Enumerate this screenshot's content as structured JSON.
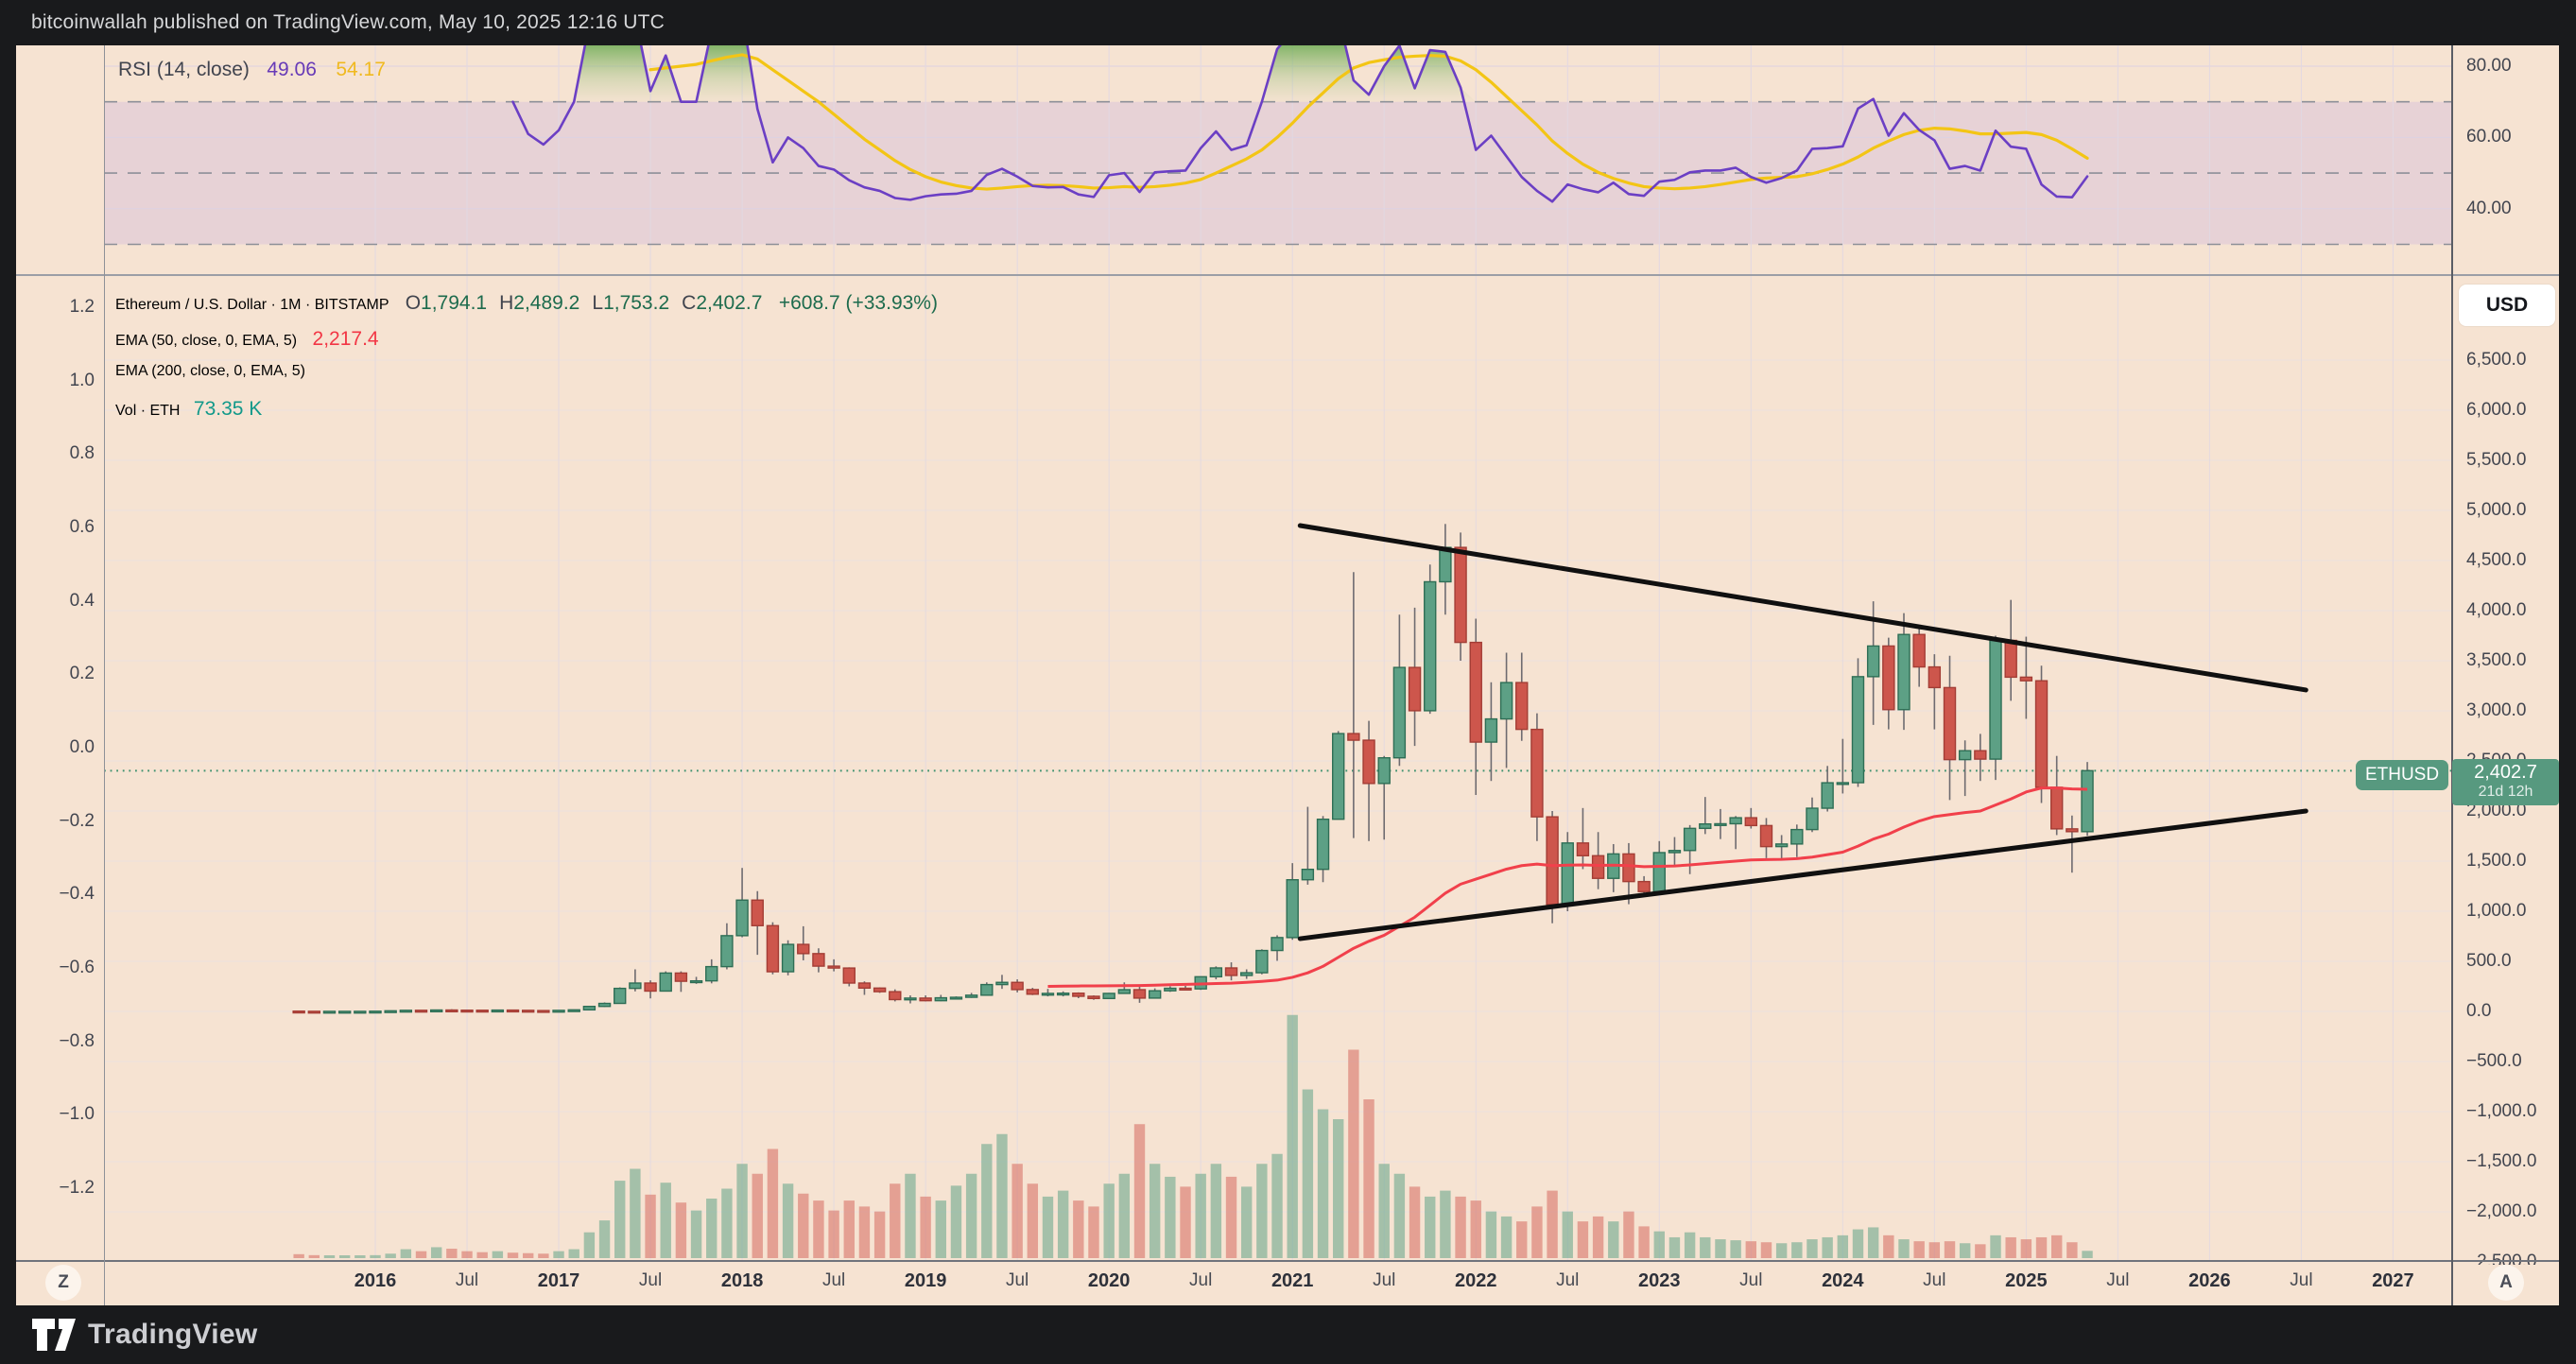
{
  "page": {
    "topbar_text": "bitcoinwallah published on TradingView.com, May 10, 2025 12:16 UTC",
    "brand": "TradingView"
  },
  "rsi_pane": {
    "legend": {
      "title": "RSI (14, close)",
      "value": "49.06",
      "ma_value": "54.17"
    }
  },
  "main_pane": {
    "legend": {
      "title": "Ethereum / U.S. Dollar · 1M · BITSTAMP",
      "ohlc": [
        [
          "O",
          "1,794.1"
        ],
        [
          "H",
          "2,489.2"
        ],
        [
          "L",
          "1,753.2"
        ],
        [
          "C",
          "2,402.7"
        ]
      ],
      "change": "+608.7 (+33.93%)",
      "ema50_title": "EMA (50, close, 0, EMA, 5)",
      "ema50_value": "2,217.4",
      "ema200_title": "EMA (200, close, 0, EMA, 5)",
      "vol_title": "Vol · ETH",
      "vol_value": "73.35 K"
    },
    "badges": {
      "symbol": "ETHUSD",
      "price": "2,402.7",
      "countdown": "21d 12h"
    },
    "currency_button": "USD"
  },
  "time_axis": {
    "zoom_button": "Z",
    "auto_button": "A",
    "ticks": [
      {
        "label": "2016",
        "month": 5
      },
      {
        "label": "Jul",
        "month": 11
      },
      {
        "label": "2017",
        "month": 17
      },
      {
        "label": "Jul",
        "month": 23
      },
      {
        "label": "2018",
        "month": 29
      },
      {
        "label": "Jul",
        "month": 35
      },
      {
        "label": "2019",
        "month": 41
      },
      {
        "label": "Jul",
        "month": 47
      },
      {
        "label": "2020",
        "month": 53
      },
      {
        "label": "Jul",
        "month": 59
      },
      {
        "label": "2021",
        "month": 65
      },
      {
        "label": "Jul",
        "month": 71
      },
      {
        "label": "2022",
        "month": 77
      },
      {
        "label": "Jul",
        "month": 83
      },
      {
        "label": "2023",
        "month": 89
      },
      {
        "label": "Jul",
        "month": 95
      },
      {
        "label": "2024",
        "month": 101
      },
      {
        "label": "Jul",
        "month": 107
      },
      {
        "label": "2025",
        "month": 113
      },
      {
        "label": "Jul",
        "month": 119
      },
      {
        "label": "2026",
        "month": 125
      },
      {
        "label": "Jul",
        "month": 131
      },
      {
        "label": "2027",
        "month": 137
      }
    ]
  },
  "chart_data": {
    "type": "candlestick",
    "symbol": "ETHUSD",
    "exchange": "BITSTAMP",
    "timeframe": "1M",
    "start_month": "2015-08",
    "price_axis": {
      "min": -2500,
      "max": 6500,
      "step": 500
    },
    "alt_axis": {
      "min": -1.2,
      "max": 1.2,
      "step": 0.2
    },
    "rsi_axis": {
      "labels": [
        80,
        60,
        40
      ],
      "dashed_levels": [
        70,
        50,
        30
      ],
      "band": [
        30,
        70
      ]
    },
    "price_line": 2402.7,
    "candles": [
      [
        2.8,
        2.9,
        0.6,
        1.2
      ],
      [
        1.2,
        1.4,
        0.6,
        0.7
      ],
      [
        0.7,
        1.2,
        0.4,
        0.9
      ],
      [
        0.9,
        1.2,
        0.8,
        0.9
      ],
      [
        0.9,
        1.0,
        0.8,
        0.95
      ],
      [
        0.95,
        2.5,
        0.9,
        2.3
      ],
      [
        2.3,
        6.5,
        2.2,
        6.2
      ],
      [
        6.2,
        15,
        5.9,
        11.2
      ],
      [
        11.2,
        12,
        7,
        8.8
      ],
      [
        8.8,
        15,
        8.7,
        14
      ],
      [
        14,
        21.5,
        10.5,
        12.2
      ],
      [
        12.2,
        13,
        9.7,
        11.8
      ],
      [
        11.8,
        12.5,
        9.8,
        11.2
      ],
      [
        11.2,
        13.5,
        11,
        13.2
      ],
      [
        13.2,
        13.5,
        10.2,
        10.9
      ],
      [
        10.9,
        11.5,
        8.5,
        8.6
      ],
      [
        8.6,
        9,
        6.9,
        8.2
      ],
      [
        8.2,
        11.5,
        8,
        10.7
      ],
      [
        10.7,
        16,
        10.5,
        15.8
      ],
      [
        15.8,
        55,
        15.5,
        50
      ],
      [
        50,
        90,
        44,
        80
      ],
      [
        80,
        240,
        76,
        230
      ],
      [
        230,
        420,
        200,
        283
      ],
      [
        283,
        310,
        130,
        203
      ],
      [
        203,
        400,
        200,
        383
      ],
      [
        383,
        400,
        195,
        301
      ],
      [
        301,
        345,
        275,
        305
      ],
      [
        305,
        520,
        280,
        447
      ],
      [
        447,
        880,
        420,
        756
      ],
      [
        756,
        1432,
        740,
        1111
      ],
      [
        1111,
        1200,
        565,
        856
      ],
      [
        856,
        890,
        370,
        396
      ],
      [
        396,
        710,
        360,
        669
      ],
      [
        669,
        850,
        510,
        577
      ],
      [
        577,
        630,
        390,
        452
      ],
      [
        452,
        520,
        400,
        433
      ],
      [
        433,
        440,
        250,
        283
      ],
      [
        283,
        300,
        165,
        233
      ],
      [
        233,
        240,
        185,
        197
      ],
      [
        197,
        220,
        100,
        118
      ],
      [
        118,
        160,
        80,
        133
      ],
      [
        133,
        160,
        100,
        107
      ],
      [
        107,
        165,
        102,
        136
      ],
      [
        136,
        150,
        125,
        141
      ],
      [
        141,
        185,
        135,
        162
      ],
      [
        162,
        290,
        158,
        268
      ],
      [
        268,
        365,
        225,
        290
      ],
      [
        290,
        320,
        190,
        218
      ],
      [
        218,
        235,
        163,
        172
      ],
      [
        172,
        225,
        150,
        180
      ],
      [
        180,
        200,
        150,
        182
      ],
      [
        182,
        190,
        132,
        151
      ],
      [
        151,
        160,
        116,
        129
      ],
      [
        129,
        185,
        125,
        180
      ],
      [
        180,
        290,
        175,
        217
      ],
      [
        217,
        255,
        86,
        133
      ],
      [
        133,
        230,
        130,
        206
      ],
      [
        206,
        250,
        195,
        231
      ],
      [
        231,
        255,
        215,
        225
      ],
      [
        225,
        350,
        215,
        346
      ],
      [
        346,
        450,
        320,
        434
      ],
      [
        434,
        490,
        310,
        359
      ],
      [
        359,
        420,
        325,
        386
      ],
      [
        386,
        620,
        370,
        608
      ],
      [
        608,
        760,
        505,
        737
      ],
      [
        737,
        1480,
        715,
        1314
      ],
      [
        1314,
        2042,
        1265,
        1418
      ],
      [
        1418,
        1950,
        1290,
        1918
      ],
      [
        1918,
        2798,
        1915,
        2773
      ],
      [
        2773,
        4384,
        1730,
        2707
      ],
      [
        2707,
        2900,
        1700,
        2275
      ],
      [
        2275,
        2550,
        1715,
        2531
      ],
      [
        2531,
        3960,
        2450,
        3433
      ],
      [
        3433,
        4030,
        2650,
        3001
      ],
      [
        3001,
        4460,
        2970,
        4288
      ],
      [
        4288,
        4865,
        3960,
        4631
      ],
      [
        4631,
        4780,
        3500,
        3683
      ],
      [
        3683,
        3920,
        2160,
        2688
      ],
      [
        2688,
        3285,
        2300,
        2919
      ],
      [
        2919,
        3580,
        2430,
        3282
      ],
      [
        3282,
        3580,
        2700,
        2815
      ],
      [
        2815,
        2975,
        1700,
        1942
      ],
      [
        1942,
        2000,
        880,
        1067
      ],
      [
        1067,
        1790,
        1000,
        1681
      ],
      [
        1681,
        2030,
        1420,
        1554
      ],
      [
        1554,
        1790,
        1220,
        1328
      ],
      [
        1328,
        1670,
        1190,
        1572
      ],
      [
        1572,
        1680,
        1070,
        1296
      ],
      [
        1296,
        1350,
        1150,
        1196
      ],
      [
        1196,
        1700,
        1190,
        1585
      ],
      [
        1585,
        1740,
        1460,
        1606
      ],
      [
        1606,
        1860,
        1370,
        1827
      ],
      [
        1827,
        2140,
        1770,
        1871
      ],
      [
        1871,
        2020,
        1720,
        1873
      ],
      [
        1873,
        1950,
        1620,
        1933
      ],
      [
        1933,
        2030,
        1825,
        1855
      ],
      [
        1855,
        1930,
        1530,
        1645
      ],
      [
        1645,
        1760,
        1520,
        1671
      ],
      [
        1671,
        1865,
        1540,
        1815
      ],
      [
        1815,
        2135,
        1790,
        2028
      ],
      [
        2028,
        2450,
        1995,
        2282
      ],
      [
        2282,
        2720,
        2175,
        2283
      ],
      [
        2283,
        3525,
        2240,
        3341
      ],
      [
        3341,
        4093,
        2860,
        3647
      ],
      [
        3647,
        3730,
        2815,
        3012
      ],
      [
        3012,
        3975,
        2810,
        3762
      ],
      [
        3762,
        3840,
        3240,
        3438
      ],
      [
        3438,
        3565,
        2815,
        3232
      ],
      [
        3232,
        3550,
        2110,
        2513
      ],
      [
        2513,
        2705,
        2150,
        2602
      ],
      [
        2602,
        2770,
        2300,
        2518
      ],
      [
        2518,
        3750,
        2310,
        3703
      ],
      [
        3703,
        4107,
        3100,
        3336
      ],
      [
        3336,
        3740,
        2920,
        3300
      ],
      [
        3300,
        3450,
        2080,
        2237
      ],
      [
        2237,
        2550,
        1760,
        1822
      ],
      [
        1822,
        1955,
        1385,
        1794.1
      ],
      [
        1794.1,
        2489.2,
        1753.2,
        2402.7
      ]
    ],
    "volumes_k": [
      40,
      30,
      25,
      22,
      20,
      30,
      45,
      90,
      70,
      110,
      95,
      70,
      60,
      70,
      55,
      50,
      45,
      70,
      90,
      260,
      380,
      780,
      900,
      640,
      760,
      560,
      480,
      600,
      700,
      950,
      850,
      1100,
      750,
      650,
      580,
      480,
      580,
      520,
      470,
      750,
      850,
      620,
      580,
      730,
      850,
      1150,
      1250,
      950,
      750,
      620,
      680,
      580,
      520,
      750,
      850,
      1350,
      950,
      820,
      720,
      850,
      950,
      820,
      720,
      950,
      1050,
      2450,
      1700,
      1500,
      1400,
      2100,
      1600,
      950,
      850,
      720,
      620,
      680,
      620,
      580,
      470,
      420,
      370,
      520,
      680,
      470,
      370,
      420,
      370,
      470,
      320,
      270,
      210,
      260,
      210,
      190,
      180,
      170,
      160,
      150,
      160,
      190,
      210,
      230,
      290,
      310,
      230,
      190,
      170,
      160,
      170,
      150,
      140,
      230,
      210,
      190,
      210,
      230,
      160,
      73.35
    ],
    "ema50": {
      "start_index": 49,
      "values": [
        250,
        252,
        254,
        255,
        256,
        257,
        258,
        262,
        266,
        270,
        274,
        278,
        282,
        290,
        300,
        312,
        340,
        385,
        450,
        540,
        630,
        700,
        760,
        850,
        940,
        1060,
        1180,
        1270,
        1320,
        1370,
        1420,
        1455,
        1470,
        1455,
        1460,
        1462,
        1458,
        1460,
        1455,
        1445,
        1448,
        1452,
        1462,
        1475,
        1488,
        1500,
        1512,
        1515,
        1518,
        1525,
        1540,
        1565,
        1590,
        1650,
        1720,
        1770,
        1840,
        1900,
        1945,
        1965,
        1985,
        2000,
        2060,
        2120,
        2190,
        2230,
        2230,
        2220,
        2217.4
      ]
    },
    "rsi": {
      "start_index": 14,
      "values": [
        70,
        61,
        58,
        62,
        70,
        92,
        95,
        96,
        94,
        73,
        83,
        70,
        70,
        90,
        95,
        95,
        68,
        53,
        60,
        57,
        52,
        51,
        48,
        46,
        45,
        43,
        42.5,
        43.5,
        44,
        44.2,
        45,
        49.5,
        51.2,
        49,
        46.4,
        46,
        46.1,
        44,
        43.3,
        49.4,
        50,
        44.7,
        50.2,
        50.5,
        50.7,
        57,
        61.7,
        56.5,
        57.8,
        70,
        84.8,
        90,
        93,
        92,
        94,
        76,
        72,
        80,
        85.8,
        73.8,
        84.5,
        84,
        74,
        56.5,
        60.5,
        54.7,
        48.9,
        45,
        42,
        46.8,
        45.5,
        44.6,
        47.3,
        44.1,
        43.6,
        47.6,
        48.1,
        50.2,
        50.7,
        50.7,
        51.5,
        48.9,
        47.3,
        48.6,
        50.7,
        56.8,
        57,
        57.5,
        68.1,
        70.8,
        60.5,
        66.8,
        62.1,
        59.2,
        51.2,
        52,
        50.7,
        61.9,
        57.4,
        56.8,
        46.8,
        43.4,
        43.2,
        49.06
      ]
    },
    "rsi_ma": {
      "start_index": 23,
      "values": [
        79,
        79.5,
        80,
        80.5,
        81.5,
        82.5,
        83.2,
        82,
        79,
        76,
        73,
        70,
        66.5,
        63,
        59.5,
        56.5,
        53.5,
        51,
        49,
        47.5,
        46.5,
        45.8,
        45.5,
        45.8,
        46.2,
        46.5,
        46.6,
        46.5,
        46.2,
        45.8,
        45.9,
        46.2,
        46,
        46.2,
        46.6,
        47.2,
        48.2,
        50,
        52,
        54,
        56.5,
        60,
        64,
        68.5,
        72.5,
        76.5,
        79.5,
        81,
        81.8,
        82.5,
        82.8,
        83,
        82.8,
        81.5,
        79,
        75.5,
        71.5,
        67.5,
        63.5,
        59,
        55.5,
        52.5,
        50.2,
        48.5,
        47.2,
        46.2,
        45.8,
        45.6,
        45.8,
        46.2,
        46.8,
        47.5,
        48.2,
        48.6,
        48.8,
        49,
        49.8,
        51,
        52.5,
        54.5,
        57,
        59,
        60.8,
        62,
        62.6,
        62.4,
        61.8,
        61,
        61,
        61.2,
        61.4,
        60.8,
        59.2,
        56.8,
        54.17
      ]
    },
    "trendlines": [
      {
        "name": "upper",
        "m1": 65.5,
        "p1": 4849,
        "m2": 131.3,
        "p2": 3208
      },
      {
        "name": "lower",
        "m1": 65.5,
        "p1": 726,
        "m2": 131.3,
        "p2": 2000
      }
    ],
    "colors": {
      "up_body": "#5da085",
      "up_border": "#2e6e55",
      "down_body": "#cd564c",
      "down_border": "#a33d35",
      "wick": "#6e6b70",
      "volume_up": "rgba(96,164,134,0.55)",
      "volume_down": "rgba(214,105,95,0.55)",
      "ema50": "#f1404b",
      "rsi": "#6b3fc4",
      "rsi_ma": "#f3c515",
      "trendline": "#101010",
      "price_line": "#3f9270",
      "badge": "#57997f",
      "pane_bg": "#f6e3d2",
      "band_bg": "#e7d2d6"
    }
  }
}
